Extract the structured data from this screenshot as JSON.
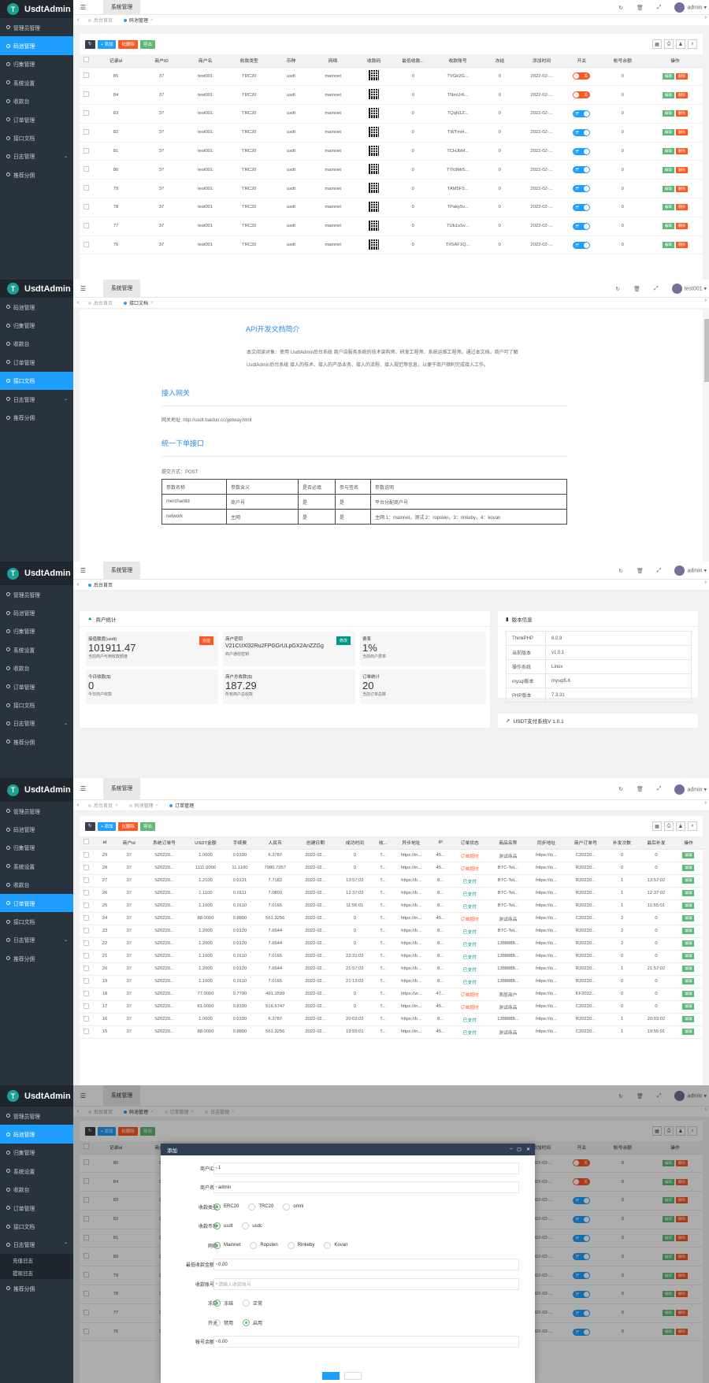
{
  "app": {
    "name": "UsdtAdmin",
    "logo_letter": "T",
    "user": "admin",
    "user2": "test001",
    "top_tab": "系统管理"
  },
  "menu1": [
    "管理员管理",
    "码池管理",
    "归集管理",
    "系统设置",
    "收款台",
    "订单管理",
    "接口文档",
    "日志管理",
    "推荐分佣"
  ],
  "menu2": [
    "码池管理",
    "归集管理",
    "收款台",
    "订单管理",
    "接口文档",
    "日志管理",
    "推荐分佣"
  ],
  "menu5": [
    "管理员管理",
    "码池管理",
    "归集管理",
    "系统设置",
    "收款台",
    "订单管理",
    "接口文档",
    "日志管理"
  ],
  "submenu5": [
    "充值日志",
    "提现日志"
  ],
  "menu5_last": "推荐分佣",
  "tabs": {
    "home": "后台首页",
    "pool": "码池管理",
    "doc": "接口文档",
    "order": "订单管理",
    "log": "日志管理"
  },
  "toolbar": {
    "add": "+ 添加",
    "del": "批删除",
    "export": "导出"
  },
  "pool": {
    "headers": [
      "",
      "记录id",
      "商户ID",
      "商户名",
      "收款类型",
      "币种",
      "网络",
      "收款码",
      "最低收款...",
      "收款账号",
      "冻结",
      "添加时间",
      "开关",
      "帐号余额",
      "操作"
    ],
    "rows": [
      [
        "85",
        "37",
        "test001",
        "TRC20",
        "usdt",
        "mainnet",
        "0",
        "TVGk2G...",
        "0",
        "2022-02-...",
        "off",
        "0"
      ],
      [
        "84",
        "37",
        "test001",
        "TRC20",
        "usdt",
        "mainnet",
        "0",
        "TNmUr6...",
        "0",
        "2022-02-...",
        "off",
        "0"
      ],
      [
        "83",
        "37",
        "test001",
        "TRC20",
        "usdt",
        "mainnet",
        "0",
        "TQqN1Z...",
        "0",
        "2022-02-...",
        "on",
        "0"
      ],
      [
        "82",
        "37",
        "test001",
        "TRC20",
        "usdt",
        "mainnet",
        "0",
        "TWTmH...",
        "0",
        "2022-02-...",
        "on",
        "0"
      ],
      [
        "81",
        "37",
        "test001",
        "TRC20",
        "usdt",
        "mainnet",
        "0",
        "TCHJbM...",
        "0",
        "2022-02-...",
        "on",
        "0"
      ],
      [
        "80",
        "37",
        "test001",
        "TRC20",
        "usdt",
        "mainnet",
        "0",
        "TYk9Mr5...",
        "0",
        "2022-02-...",
        "on",
        "0"
      ],
      [
        "79",
        "37",
        "test001",
        "TRC20",
        "usdt",
        "mainnet",
        "0",
        "TAM5F5...",
        "0",
        "2022-02-...",
        "on",
        "0"
      ],
      [
        "78",
        "37",
        "test001",
        "TRC20",
        "usdt",
        "mainnet",
        "0",
        "TPaky5v...",
        "0",
        "2022-02-...",
        "on",
        "0"
      ],
      [
        "77",
        "37",
        "test001",
        "TRC20",
        "usdt",
        "mainnet",
        "0",
        "TUb1sSv...",
        "0",
        "2022-02-...",
        "on",
        "0"
      ],
      [
        "76",
        "37",
        "test001",
        "TRC20",
        "usdt",
        "mainnet",
        "0",
        "TX5AF1Q...",
        "0",
        "2022-02-...",
        "on",
        "0"
      ]
    ],
    "switch_on": "开",
    "switch_off": "关",
    "edit": "编辑",
    "delete": "删除"
  },
  "doc": {
    "title": "API开发文档简介",
    "intro1": "本文阅读对象：使用 UsdtAdmin后台系统 商户自服务系统的技术架构师、研发工程师、系统运维工程师。通过本文档，商户可了解",
    "intro2": "UsdtAdmin后台系统 接入的技术、接入的产品业务、接入的流程、接入规范等信息，以便于商户顺利完成接入工作。",
    "gw_title": "接入网关",
    "gw": "网关地址:   http://usdt.baidun.cc/getway.html",
    "order_title": "统一下单接口",
    "method": "提交方式：POST",
    "th": [
      "参数名称",
      "参数含义",
      "是否必填",
      "参与签名",
      "参数说明"
    ],
    "rows": [
      [
        "merchantid",
        "商户号",
        "是",
        "是",
        "平台分配商户号"
      ],
      [
        "network",
        "主网",
        "是",
        "是",
        "主网 1：mainnet，测试 2：ropsten，3：rinkeby，4：kovan"
      ]
    ]
  },
  "dash": {
    "stat_title": "商户统计",
    "boxes": [
      {
        "t": "接值额度(usdt)",
        "v": "101911.47",
        "s": "当前商户可用收款额度",
        "tag": "充值"
      },
      {
        "t": "商户密钥",
        "v": "V21CUXl32Ru2FPGGrULpGX2AnZZGg",
        "s": "商户通信密钥",
        "tag": "修改"
      },
      {
        "t": "费率",
        "v": "1%",
        "s": "当前商户费率"
      },
      {
        "t": "今日收款($)",
        "v": "0",
        "s": "今日商户收款"
      },
      {
        "t": "商户总收款($)",
        "v": "187.29",
        "s": "所有商户总收款"
      },
      {
        "t": "订单统计",
        "v": "20",
        "s": "当前订单总数"
      }
    ],
    "ver_title": "版本信息",
    "ver": [
      [
        "ThinkPHP",
        "6.0.9"
      ],
      [
        "当前版本",
        "v1.0.1"
      ],
      [
        "操作系统",
        "Linux"
      ],
      [
        "mysql版本",
        "mysql5.6"
      ],
      [
        "PHP版本",
        "7.3.31"
      ]
    ],
    "sys": "USDT支付系统V 1.0.1"
  },
  "order": {
    "headers": [
      "",
      "id",
      "商户id",
      "系统订单号",
      "USDT金额",
      "手续费",
      "人民币",
      "创建日期",
      "成功时间",
      "收...",
      "异步地址",
      "IP",
      "订单状态",
      "商品名称",
      "同步地址",
      "商户订单号",
      "补发次数",
      "最后补发",
      "操作"
    ],
    "rows": [
      [
        "29",
        "37",
        "S20220...",
        "1.0000",
        "0.0100",
        "6.3787",
        "2022-02...",
        "0",
        "T...",
        "https://in...",
        "45...",
        "订单超时",
        "测试商品",
        "https://in...",
        "C20220...",
        "0",
        "0"
      ],
      [
        "28",
        "37",
        "S20220...",
        "1111.0000",
        "11.1100",
        "7086.7357",
        "2022-02...",
        "0",
        "T...",
        "https://in...",
        "45...",
        "订单超时",
        "BTC-Tet...",
        "https://in...",
        "R20220...",
        "0",
        "0"
      ],
      [
        "27",
        "37",
        "S20220...",
        "1.2100",
        "0.0121",
        "7.7182",
        "2022-02...",
        "13:57:02",
        "T...",
        "https://b...",
        "8...",
        "已支付",
        "BTC-Tet...",
        "https://in...",
        "R20220...",
        "1",
        "13:57:02"
      ],
      [
        "26",
        "37",
        "S20220...",
        "1.1100",
        "0.0111",
        "7.0803",
        "2022-02...",
        "12:37:02",
        "T...",
        "https://b...",
        "8...",
        "已支付",
        "BTC-Tet...",
        "https://in...",
        "R20220...",
        "1",
        "12:37:02"
      ],
      [
        "25",
        "37",
        "S20220...",
        "1.1000",
        "0.0110",
        "7.0165",
        "2022-02...",
        "11:55:01",
        "T...",
        "https://b...",
        "8...",
        "已支付",
        "BTC-Tet...",
        "https://in...",
        "R20220...",
        "1",
        "11:55:01"
      ],
      [
        "24",
        "37",
        "S20220...",
        "88.0000",
        "0.8800",
        "561.3256",
        "2022-02...",
        "0",
        "T...",
        "https://in...",
        "45...",
        "订单超时",
        "测试商品",
        "https://in...",
        "C20220...",
        "3",
        "0"
      ],
      [
        "23",
        "37",
        "S20220...",
        "1.2000",
        "0.0120",
        "7.6544",
        "2022-02...",
        "0",
        "T...",
        "https://b...",
        "8...",
        "已支付",
        "BTC-Tet...",
        "https://in...",
        "R20220...",
        "3",
        "0"
      ],
      [
        "22",
        "37",
        "S20220...",
        "1.2000",
        "0.0120",
        "7.6544",
        "2022-02...",
        "0",
        "T...",
        "https://b...",
        "8...",
        "已支付",
        "1388888...",
        "https://in...",
        "R20220...",
        "3",
        "0"
      ],
      [
        "21",
        "37",
        "S20220...",
        "1.1000",
        "0.0110",
        "7.0165",
        "2022-02...",
        "22:31:02",
        "T...",
        "https://b...",
        "8...",
        "已支付",
        "1388888...",
        "https://in...",
        "R20220...",
        "0",
        "0"
      ],
      [
        "20",
        "37",
        "S20220...",
        "1.2000",
        "0.0120",
        "7.6544",
        "2022-02...",
        "21:57:02",
        "T...",
        "https://b...",
        "8...",
        "已支付",
        "1388888...",
        "https://in...",
        "R20220...",
        "1",
        "21:57:02"
      ],
      [
        "19",
        "37",
        "S20220...",
        "1.1000",
        "0.0110",
        "7.0165",
        "2022-02...",
        "21:13:02",
        "T...",
        "https://b...",
        "8...",
        "已支付",
        "1388888...",
        "https://in...",
        "R20220...",
        "0",
        "0"
      ],
      [
        "18",
        "37",
        "S20220...",
        "77.0000",
        "0.7700",
        "491.1599",
        "2022-02...",
        "0",
        "T...",
        "https://w...",
        "47...",
        "订单超时",
        "表层商户",
        "https://in...",
        "KF2022...",
        "0",
        "0"
      ],
      [
        "17",
        "37",
        "S20220...",
        "81.0000",
        "0.8100",
        "516.6747",
        "2022-02...",
        "0",
        "T...",
        "https://in...",
        "45...",
        "订单超时",
        "测试商品",
        "https://in...",
        "C20220...",
        "0",
        "0"
      ],
      [
        "16",
        "37",
        "S20220...",
        "1.0000",
        "0.0100",
        "6.3787",
        "2022-02...",
        "20:03:02",
        "T...",
        "https://b...",
        "8...",
        "已支付",
        "1388888...",
        "https://in...",
        "R20220...",
        "1",
        "20:03:02"
      ],
      [
        "15",
        "37",
        "S20220...",
        "88.0000",
        "0.8800",
        "561.3256",
        "2022-02...",
        "19:55:01",
        "T...",
        "https://in...",
        "45...",
        "已支付",
        "测试商品",
        "https://in...",
        "C20220...",
        "1",
        "19:55:01"
      ]
    ]
  },
  "modal": {
    "title": "添加",
    "merchant_id_label": "商户ID",
    "merchant_id": "1",
    "merchant_name_label": "商户名",
    "merchant_name": "admin",
    "type_label": "收款类型",
    "types": [
      "ERC20",
      "TRC20",
      "omni"
    ],
    "coin_label": "收款币种",
    "coins": [
      "usdt",
      "usdc"
    ],
    "net_label": "网络",
    "nets": [
      "Mainnet",
      "Ropsten",
      "Rinkeby",
      "Kovan"
    ],
    "min_label": "最低收款金额",
    "min": "0.00",
    "acct_label": "收款账号",
    "acct_ph": "请输入收款账号",
    "freeze_label": "冻结",
    "freezes": [
      "冻结",
      "正常"
    ],
    "switch_label": "开关",
    "switches": [
      "禁用",
      "启用"
    ],
    "bal_label": "帐号余额",
    "bal": "0.00"
  }
}
